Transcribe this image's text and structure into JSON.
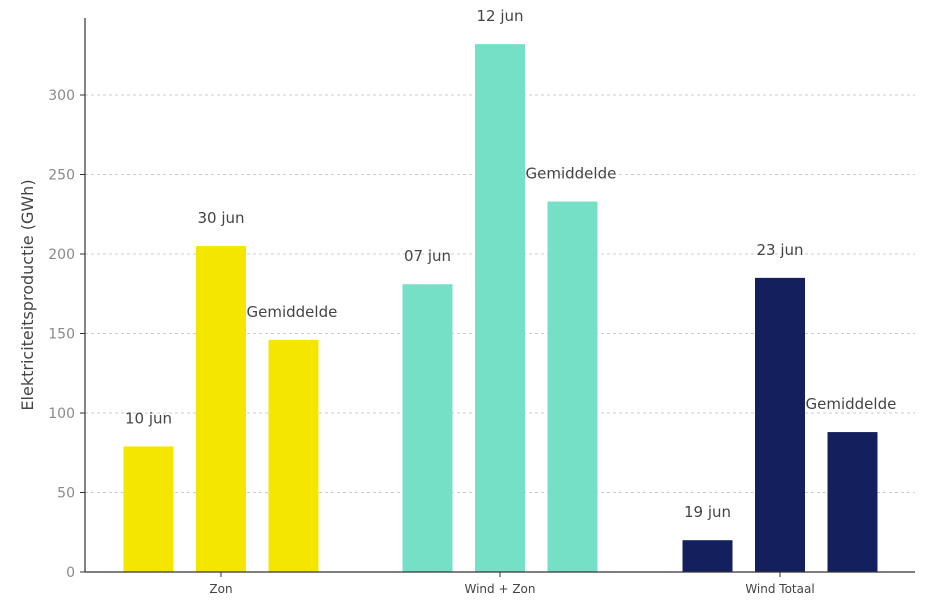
{
  "chart_data": {
    "type": "bar",
    "ylabel": "Elektriciteitsproductie (GWh)",
    "xlabel": "",
    "ylim": [
      0,
      350
    ],
    "yticks": [
      0,
      50,
      100,
      150,
      200,
      250,
      300
    ],
    "grid": true,
    "groups": [
      {
        "category": "Zon",
        "color": "#F5E600",
        "bars": [
          {
            "label": "10 jun",
            "value": 79
          },
          {
            "label": "30 jun",
            "value": 205
          },
          {
            "label": "Gemiddelde",
            "value": 146
          }
        ]
      },
      {
        "category": "Wind + Zon",
        "color": "#76E0C6",
        "bars": [
          {
            "label": "07 jun",
            "value": 181
          },
          {
            "label": "12 jun",
            "value": 332
          },
          {
            "label": "Gemiddelde",
            "value": 233
          }
        ]
      },
      {
        "category": "Wind Totaal",
        "color": "#14205E",
        "bars": [
          {
            "label": "19 jun",
            "value": 20
          },
          {
            "label": "23 jun",
            "value": 185
          },
          {
            "label": "Gemiddelde",
            "value": 88
          }
        ]
      }
    ]
  }
}
